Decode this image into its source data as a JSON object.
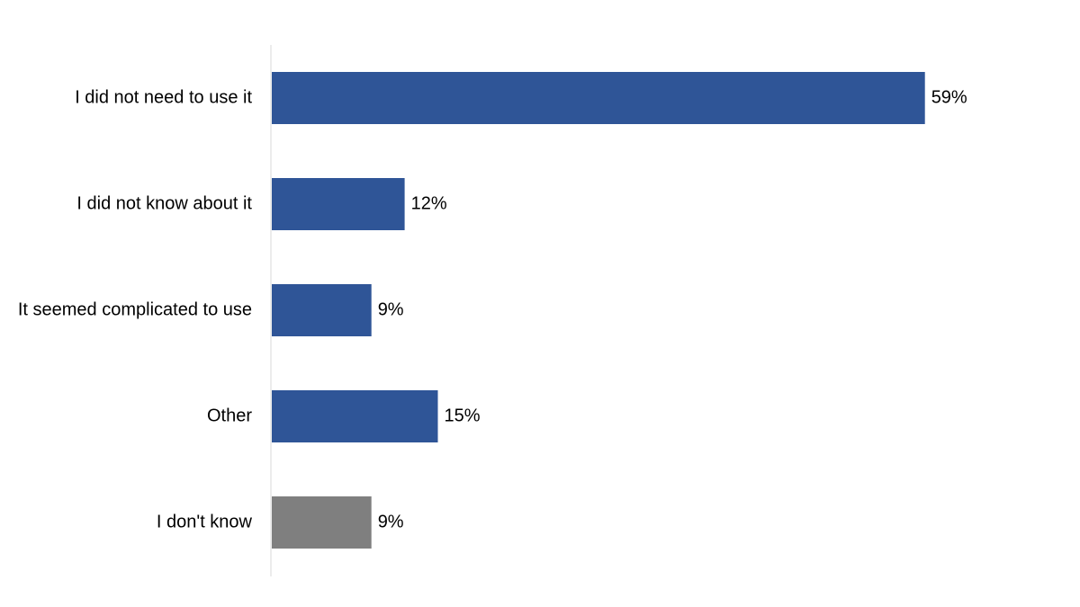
{
  "chart_data": {
    "type": "bar",
    "orientation": "horizontal",
    "categories": [
      "I did not need to use it",
      "I did not know about it",
      "It seemed complicated to use",
      "Other",
      "I don't know"
    ],
    "values": [
      59,
      12,
      9,
      15,
      9
    ],
    "data_labels": [
      "59%",
      "12%",
      "9%",
      "15%",
      "9%"
    ],
    "unit": "%",
    "xlim": [
      0,
      70
    ],
    "grid": false,
    "legend": "none",
    "colors": {
      "primary": "#2F5597",
      "neutral": "#7F7F7F",
      "axis": "#D9D9D9"
    },
    "bar_colors": [
      "primary",
      "primary",
      "primary",
      "primary",
      "neutral"
    ]
  }
}
